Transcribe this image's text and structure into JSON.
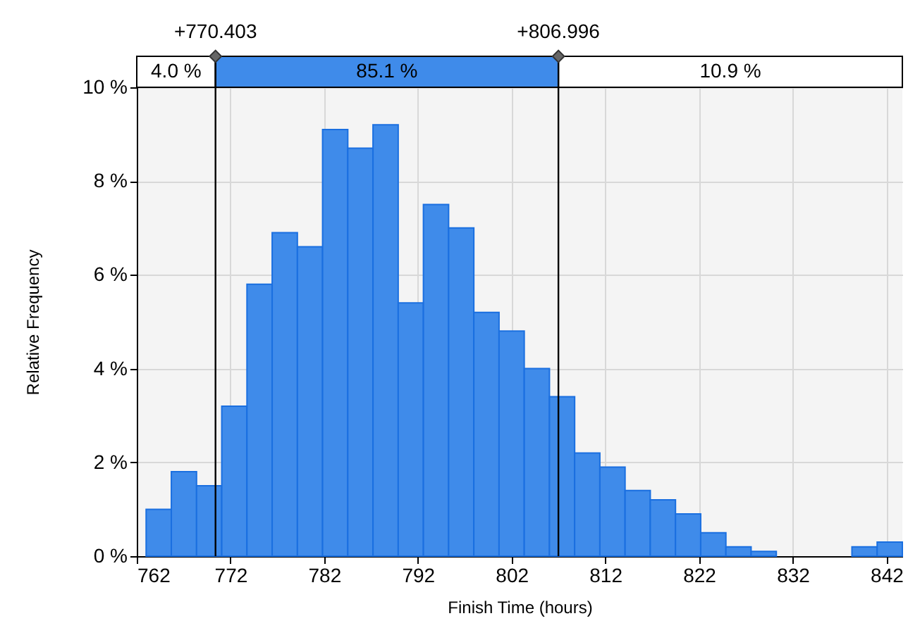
{
  "chart_data": {
    "type": "histogram",
    "xlabel": "Finish Time (hours)",
    "ylabel": "Relative Frequency",
    "bins": [
      763,
      765.69,
      768.38,
      771.07,
      773.76,
      776.45,
      779.14,
      781.83,
      784.52,
      787.21,
      789.9,
      792.59,
      795.28,
      797.97,
      800.66,
      803.35,
      806.04,
      808.73,
      811.42,
      814.11,
      816.8,
      819.49,
      822.18,
      824.87,
      827.56,
      830.25,
      832.94,
      835.63,
      838.32,
      841.01,
      843.7
    ],
    "values": [
      1.0,
      1.8,
      1.5,
      3.2,
      5.8,
      6.9,
      6.6,
      9.1,
      8.7,
      9.2,
      5.4,
      7.5,
      7.0,
      5.2,
      4.8,
      4.0,
      3.4,
      2.2,
      1.9,
      1.4,
      1.2,
      0.9,
      0.5,
      0.2,
      0.1,
      0,
      0,
      0,
      0.2,
      0.3
    ],
    "color": "#3f8bea",
    "xlim": [
      762,
      843.7
    ],
    "xticks": [
      762,
      772,
      782,
      792,
      802,
      812,
      822,
      832,
      842
    ],
    "ylim": [
      0,
      10
    ],
    "yticks": [
      {
        "value": 0,
        "label": "0 %"
      },
      {
        "value": 2,
        "label": "2 %"
      },
      {
        "value": 4,
        "label": "4 %"
      },
      {
        "value": 6,
        "label": "6 %"
      },
      {
        "value": 8,
        "label": "8 %"
      },
      {
        "value": 10,
        "label": "10 %"
      }
    ],
    "grid": true,
    "ref_lines": [
      {
        "axis": "x",
        "value": 770.403,
        "label": "+770.403"
      },
      {
        "axis": "x",
        "value": 806.996,
        "label": "+806.996"
      }
    ],
    "annotations": [
      "4.0 %",
      "85.1 %",
      "10.9 %"
    ]
  }
}
